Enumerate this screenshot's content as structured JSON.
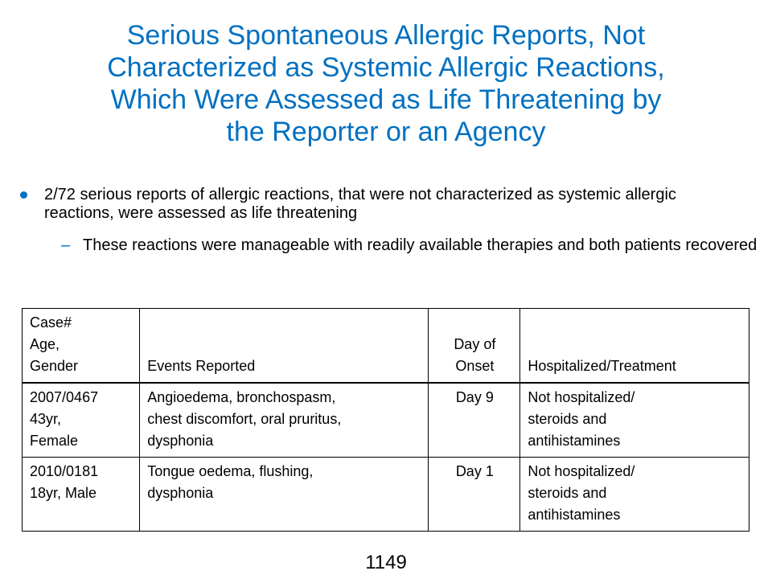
{
  "title_lines": [
    "Serious Spontaneous Allergic Reports, Not",
    "Characterized as Systemic Allergic Reactions,",
    "Which Were Assessed as Life Threatening by",
    "the Reporter or an Agency"
  ],
  "bullet": "2/72 serious reports of allergic reactions, that were not characterized as systemic allergic reactions, were assessed as life threatening",
  "sub_bullet_marker": "–",
  "sub_bullet": "These reactions were manageable with readily available therapies and both patients recovered",
  "table": {
    "headers": [
      [
        "Case#",
        "Age,",
        "Gender"
      ],
      [
        "Events Reported"
      ],
      [
        "Day of",
        "Onset"
      ],
      [
        "Hospitalized/Treatment"
      ]
    ],
    "rows": [
      {
        "case": [
          "2007/0467",
          "43yr,",
          "Female"
        ],
        "events": [
          "Angioedema, bronchospasm,",
          "chest discomfort, oral pruritus,",
          "dysphonia"
        ],
        "onset": "Day 9",
        "treatment": [
          "Not hospitalized/",
          "steroids and",
          "antihistamines"
        ]
      },
      {
        "case": [
          "2010/0181",
          "18yr, Male"
        ],
        "events": [
          "Tongue oedema, flushing,",
          "dysphonia"
        ],
        "onset": "Day 1",
        "treatment": [
          "Not hospitalized/",
          "steroids and",
          "antihistamines"
        ]
      }
    ]
  },
  "page_number": "1149",
  "colors": {
    "accent": "#0070c0"
  }
}
